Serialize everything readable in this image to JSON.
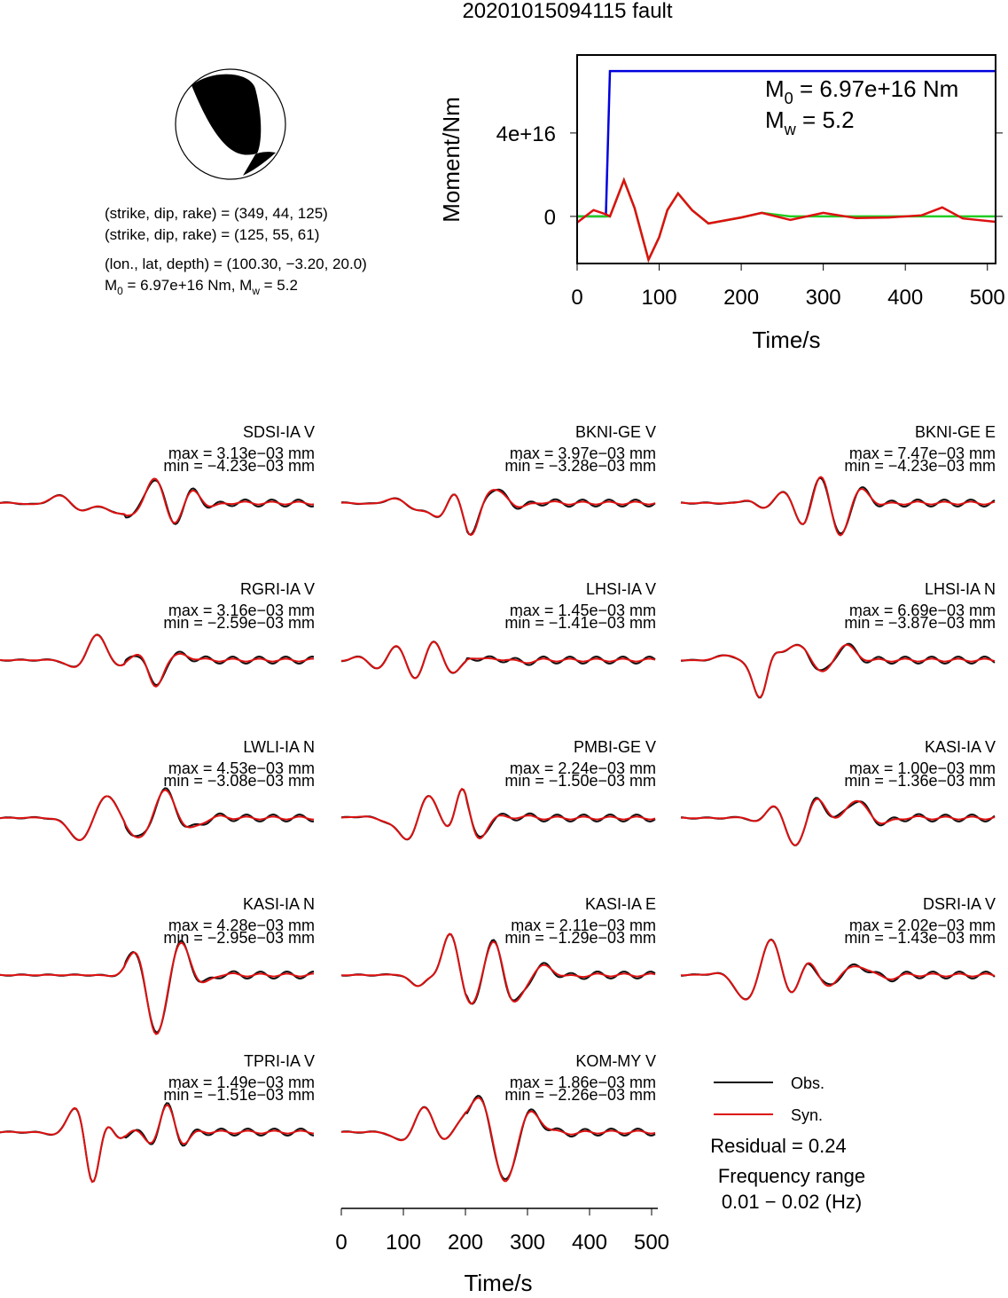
{
  "title": "20201015094115 fault",
  "mechanism": {
    "lines": [
      {
        "parts": [
          "(strike, dip, rake) = (349, 44, 125)"
        ]
      },
      {
        "parts": [
          "(strike, dip, rake) = (125, 55, 61)"
        ]
      },
      {
        "parts": [
          "(lon., lat, depth) = (100.30, −3.20, 20.0)"
        ]
      },
      {
        "parts": [
          "M",
          "0",
          " = 6.97e+16 Nm, M",
          "w",
          " = 5.2"
        ]
      }
    ]
  },
  "chart_data": {
    "type": "line",
    "ylabel": "Moment/Nm",
    "xlabel": "Time/s",
    "annotations": [
      {
        "parts": [
          "M",
          "0",
          " = 6.97e+16 Nm"
        ]
      },
      {
        "parts": [
          "M",
          "w",
          " = 5.2"
        ]
      }
    ],
    "xlim": [
      0,
      510
    ],
    "ylim": [
      -2.26e+16,
      7.74e+16
    ],
    "xticks": [
      0,
      100,
      200,
      300,
      400,
      500
    ],
    "yticks": [
      0,
      {
        "value": 4e+16,
        "label": "4e+16"
      }
    ],
    "x": [
      0,
      20,
      35,
      40,
      45,
      57,
      70,
      87,
      100,
      110,
      123,
      140,
      160,
      200,
      225,
      260,
      300,
      340,
      380,
      420,
      445,
      470,
      510
    ],
    "series": [
      {
        "color": "#0000dd",
        "values": [
          0,
          0,
          0,
          6.97e+16,
          6.97e+16,
          6.97e+16,
          6.97e+16,
          6.97e+16,
          6.97e+16,
          6.97e+16,
          6.97e+16,
          6.97e+16,
          6.97e+16,
          6.97e+16,
          6.97e+16,
          6.97e+16,
          6.97e+16,
          6.97e+16,
          6.97e+16,
          6.97e+16,
          6.97e+16,
          6.97e+16,
          6.97e+16
        ]
      },
      {
        "color": "#22cc22",
        "values": [
          0,
          0,
          0,
          0,
          5000000000000000.0,
          1.74e+16,
          4000000000000000.0,
          -2.08e+16,
          -1e+16,
          3000000000000000.0,
          1.1e+16,
          3000000000000000.0,
          -3400000000000000.0,
          -500000000000000.0,
          1700000000000000.0,
          0,
          0,
          0,
          0,
          0,
          0,
          0,
          0
        ]
      },
      {
        "color": "#dd1111",
        "values": [
          -3000000000000000.0,
          3000000000000000.0,
          1000000000000000.0,
          0,
          5000000000000000.0,
          1.74e+16,
          4000000000000000.0,
          -2.08e+16,
          -1e+16,
          3000000000000000.0,
          1.1e+16,
          3000000000000000.0,
          -3400000000000000.0,
          -500000000000000.0,
          1700000000000000.0,
          -1700000000000000.0,
          1700000000000000.0,
          -800000000000000.0,
          -500000000000000.0,
          500000000000000.0,
          4300000000000000.0,
          -1000000000000000.0,
          -2600000000000000.0
        ]
      }
    ]
  },
  "panels": [
    {
      "station": "SDSI-IA V",
      "max": "max = 3.13e−03 mm",
      "min": "min = −4.23e−03 mm"
    },
    {
      "station": "BKNI-GE V",
      "max": "max = 3.97e−03 mm",
      "min": "min = −3.28e−03 mm"
    },
    {
      "station": "BKNI-GE E",
      "max": "max = 7.47e−03 mm",
      "min": "min = −4.23e−03 mm"
    },
    {
      "station": "RGRI-IA V",
      "max": "max = 3.16e−03 mm",
      "min": "min = −2.59e−03 mm"
    },
    {
      "station": "LHSI-IA V",
      "max": "max = 1.45e−03 mm",
      "min": "min = −1.41e−03 mm"
    },
    {
      "station": "LHSI-IA N",
      "max": "max = 6.69e−03 mm",
      "min": "min = −3.87e−03 mm"
    },
    {
      "station": "LWLI-IA N",
      "max": "max = 4.53e−03 mm",
      "min": "min = −3.08e−03 mm"
    },
    {
      "station": "PMBI-GE V",
      "max": "max = 2.24e−03 mm",
      "min": "min = −1.50e−03 mm"
    },
    {
      "station": "KASI-IA V",
      "max": "max = 1.00e−03 mm",
      "min": "min = −1.36e−03 mm"
    },
    {
      "station": "KASI-IA N",
      "max": "max = 4.28e−03 mm",
      "min": "min = −2.95e−03 mm"
    },
    {
      "station": "KASI-IA E",
      "max": "max = 2.11e−03 mm",
      "min": "min = −1.29e−03 mm"
    },
    {
      "station": "DSRI-IA V",
      "max": "max = 2.02e−03 mm",
      "min": "min = −1.43e−03 mm"
    },
    {
      "station": "TPRI-IA V",
      "max": "max = 1.49e−03 mm",
      "min": "min = −1.51e−03 mm"
    },
    {
      "station": "KOM-MY V",
      "max": "max = 1.86e−03 mm",
      "min": "min = −2.26e−03 mm"
    }
  ],
  "legend": {
    "obs": "Obs.",
    "syn": "Syn.",
    "obs_color": "#111111",
    "syn_color": "#dd1111"
  },
  "residual": "Residual = 0.24",
  "frequency": {
    "title": "Frequency range",
    "range": "0.01 − 0.02 (Hz)"
  },
  "wave_axis": {
    "xlim": [
      0,
      510
    ],
    "xticks": [
      0,
      100,
      200,
      300,
      400,
      500
    ],
    "xlabel": "Time/s"
  }
}
